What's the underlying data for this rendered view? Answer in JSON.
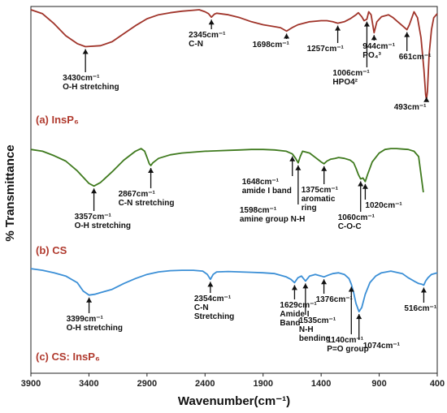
{
  "chart_data": {
    "type": "line",
    "xlabel": "Wavenumber(cm⁻¹)",
    "ylabel": "% Transmittance",
    "xlim": [
      3900,
      400
    ],
    "x_ticks": [
      "3900",
      "3400",
      "2900",
      "2400",
      "1900",
      "1400",
      "900",
      "400"
    ],
    "grid": false,
    "colors": {
      "a": "#a0342a",
      "b": "#3f7a1e",
      "c": "#3b8fd6",
      "a_label": "#b03a2e",
      "b_label": "#b03a2e",
      "c_label": "#b03a2e"
    },
    "series": [
      {
        "label": "(a) InsP₆",
        "x": [
          3900,
          3800,
          3700,
          3600,
          3500,
          3430,
          3300,
          3200,
          3100,
          3000,
          2900,
          2800,
          2700,
          2600,
          2500,
          2450,
          2400,
          2370,
          2345,
          2320,
          2300,
          2200,
          2100,
          2000,
          1900,
          1800,
          1750,
          1698,
          1650,
          1600,
          1500,
          1400,
          1350,
          1300,
          1257,
          1200,
          1150,
          1100,
          1080,
          1050,
          1030,
          1006,
          990,
          970,
          944,
          920,
          880,
          820,
          780,
          740,
          700,
          661,
          640,
          600,
          570,
          540,
          515,
          500,
          493,
          485,
          470,
          450,
          430,
          400
        ],
        "y": [
          100,
          96,
          86,
          74,
          66,
          63,
          64,
          68,
          76,
          84,
          91,
          95,
          97,
          98.5,
          99.5,
          100,
          98,
          96,
          92.5,
          95.5,
          96.5,
          95,
          92,
          88,
          85,
          83,
          82,
          78.5,
          82,
          85,
          88,
          89,
          89,
          88,
          86.5,
          88,
          91,
          95,
          97,
          93,
          89,
          90.5,
          98,
          95,
          77,
          88,
          93,
          95,
          92,
          88,
          84,
          80,
          85,
          98,
          92,
          72,
          40,
          15,
          10,
          18,
          55,
          80,
          92,
          96
        ]
      },
      {
        "label": "(b) CS",
        "x": [
          3900,
          3800,
          3700,
          3600,
          3500,
          3400,
          3357,
          3300,
          3200,
          3100,
          3000,
          2950,
          2920,
          2900,
          2880,
          2867,
          2850,
          2800,
          2700,
          2600,
          2500,
          2400,
          2300,
          2200,
          2100,
          2000,
          1900,
          1800,
          1700,
          1648,
          1620,
          1598,
          1580,
          1560,
          1500,
          1450,
          1420,
          1400,
          1375,
          1350,
          1320,
          1280,
          1250,
          1200,
          1150,
          1120,
          1100,
          1080,
          1060,
          1040,
          1020,
          1000,
          960,
          900,
          850,
          800,
          750,
          700,
          650,
          600,
          560,
          540,
          520
        ],
        "y": [
          98,
          96,
          91,
          85,
          74,
          60,
          57,
          61,
          73,
          86,
          96,
          99,
          96,
          89,
          82,
          80,
          83,
          88,
          92,
          94,
          95,
          96,
          96.5,
          97,
          97.5,
          98,
          98,
          97.5,
          96,
          93,
          88,
          83,
          90,
          96,
          94,
          89,
          86,
          84,
          82,
          85,
          87,
          88,
          89,
          88,
          86,
          83,
          77,
          70,
          65,
          66,
          62,
          70,
          84,
          94,
          98,
          99,
          99,
          98.5,
          98,
          96,
          90,
          70,
          50
        ]
      },
      {
        "label": "(c) CS: InsP₆",
        "x": [
          3900,
          3800,
          3700,
          3600,
          3500,
          3450,
          3399,
          3350,
          3300,
          3200,
          3100,
          3000,
          2900,
          2800,
          2700,
          2600,
          2500,
          2420,
          2380,
          2354,
          2330,
          2300,
          2200,
          2100,
          2000,
          1900,
          1800,
          1700,
          1660,
          1629,
          1600,
          1570,
          1535,
          1500,
          1450,
          1400,
          1376,
          1340,
          1300,
          1250,
          1200,
          1160,
          1140,
          1120,
          1100,
          1074,
          1050,
          1020,
          980,
          930,
          880,
          800,
          700,
          650,
          600,
          560,
          530,
          516,
          500,
          480,
          450,
          400
        ],
        "y": [
          97,
          95,
          92,
          88,
          80,
          70,
          65,
          66,
          68,
          72,
          79,
          85,
          90,
          93,
          94.5,
          95,
          95,
          94,
          90,
          84,
          90,
          93,
          93.5,
          93,
          92.5,
          92,
          91,
          87,
          84,
          80,
          86,
          88,
          82,
          88,
          90,
          88,
          87,
          89,
          91,
          92,
          90,
          85,
          78,
          68,
          55,
          45,
          50,
          66,
          80,
          88,
          92,
          94,
          91,
          86,
          82,
          79,
          78,
          77,
          82,
          86,
          90,
          92
        ]
      }
    ],
    "annotations": [
      {
        "series": 0,
        "x": 3430,
        "lines": [
          "3430cm⁻¹",
          "O-H stretching"
        ]
      },
      {
        "series": 0,
        "x": 2345,
        "lines": [
          "2345cm⁻¹",
          "C-N"
        ]
      },
      {
        "series": 0,
        "x": 1698,
        "lines": [
          "1698cm⁻¹"
        ]
      },
      {
        "series": 0,
        "x": 1257,
        "lines": [
          "1257cm⁻¹"
        ]
      },
      {
        "series": 0,
        "x": 1006,
        "lines": [
          "1006cm⁻¹",
          "HPO4²"
        ]
      },
      {
        "series": 0,
        "x": 944,
        "lines": [
          "944cm⁻¹",
          "PO₄³"
        ]
      },
      {
        "series": 0,
        "x": 661,
        "lines": [
          "661cm⁻¹"
        ]
      },
      {
        "series": 0,
        "x": 493,
        "lines": [
          "493cm⁻¹"
        ]
      },
      {
        "series": 1,
        "x": 3357,
        "lines": [
          "3357cm⁻¹",
          "O-H stretching"
        ]
      },
      {
        "series": 1,
        "x": 2867,
        "lines": [
          "2867cm⁻¹",
          "C-N stretching"
        ]
      },
      {
        "series": 1,
        "x": 1648,
        "lines": [
          "1648cm⁻¹",
          "amide I band"
        ]
      },
      {
        "series": 1,
        "x": 1598,
        "lines": [
          "1598cm⁻¹",
          "amine group N-H"
        ]
      },
      {
        "series": 1,
        "x": 1375,
        "lines": [
          "1375cm⁻¹",
          "aromatic",
          "ring"
        ]
      },
      {
        "series": 1,
        "x": 1060,
        "lines": [
          "1060cm⁻¹",
          "C-O-C"
        ]
      },
      {
        "series": 1,
        "x": 1020,
        "lines": [
          "1020cm⁻¹"
        ]
      },
      {
        "series": 2,
        "x": 3399,
        "lines": [
          "3399cm⁻¹",
          "O-H stretching"
        ]
      },
      {
        "series": 2,
        "x": 2354,
        "lines": [
          "2354cm⁻¹",
          "C-N",
          "Stretching"
        ]
      },
      {
        "series": 2,
        "x": 1629,
        "lines": [
          "1629cm⁻¹",
          "Amide I",
          "Band"
        ]
      },
      {
        "series": 2,
        "x": 1535,
        "lines": [
          "1535cm⁻¹",
          "N-H",
          "bending"
        ]
      },
      {
        "series": 2,
        "x": 1376,
        "lines": [
          "1376cm⁻¹"
        ]
      },
      {
        "series": 2,
        "x": 1140,
        "lines": [
          "1140cm⁻¹",
          "P=O group"
        ]
      },
      {
        "series": 2,
        "x": 1074,
        "lines": [
          "1074cm⁻¹"
        ]
      },
      {
        "series": 2,
        "x": 516,
        "lines": [
          "516cm⁻¹"
        ]
      }
    ]
  }
}
